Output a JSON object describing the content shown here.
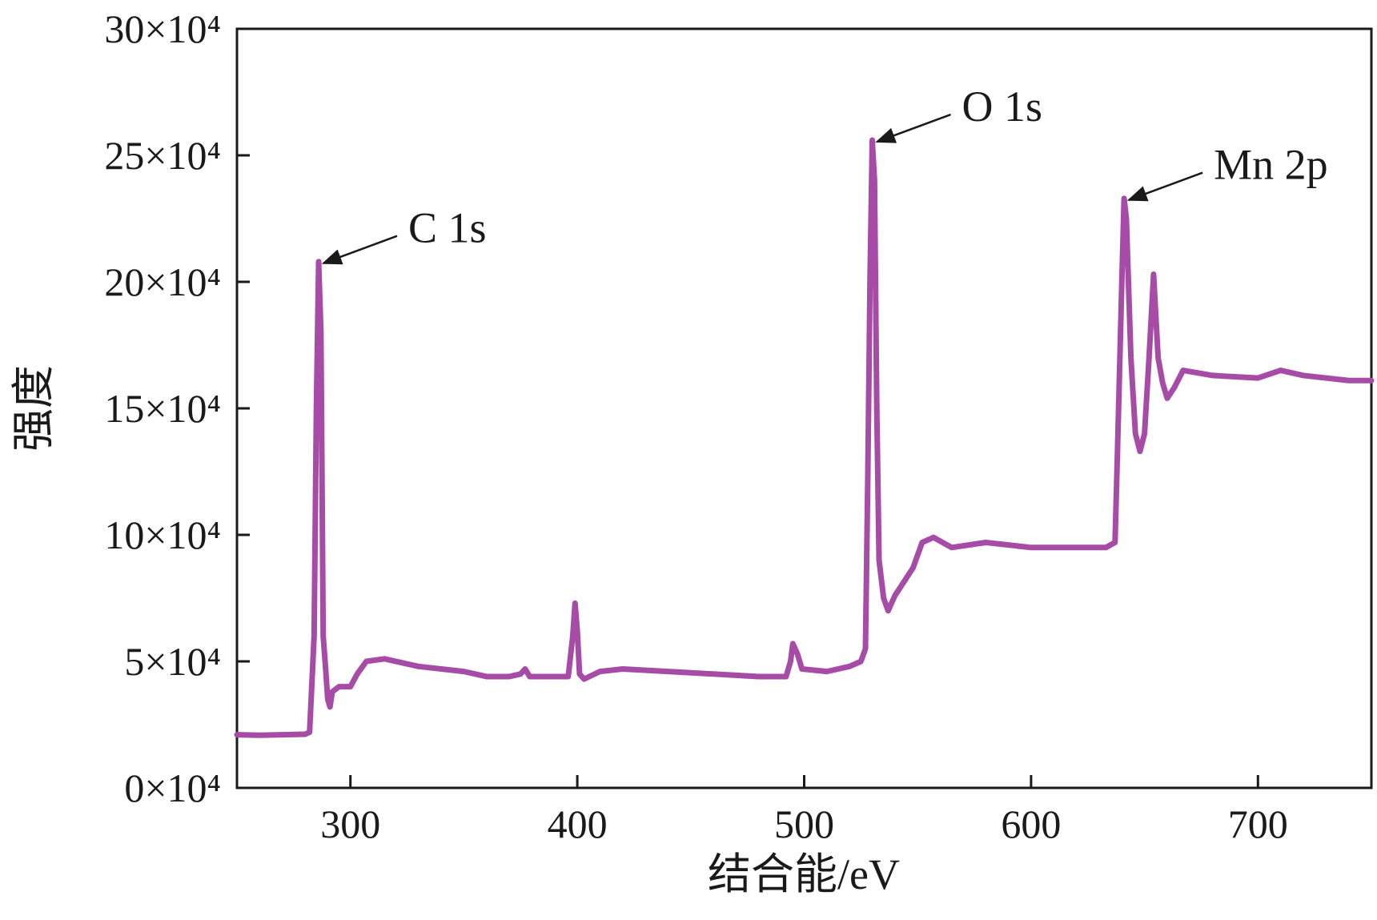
{
  "chart_data": {
    "type": "line",
    "xlabel": "结合能/eV",
    "ylabel": "强度",
    "xlim": [
      250,
      750
    ],
    "ylim": [
      0,
      300000
    ],
    "xticks": [
      300,
      400,
      500,
      600,
      700
    ],
    "yticks": [
      {
        "value": 0,
        "label": "0×10⁴"
      },
      {
        "value": 50000,
        "label": "5×10⁴"
      },
      {
        "value": 100000,
        "label": "10×10⁴"
      },
      {
        "value": 150000,
        "label": "15×10⁴"
      },
      {
        "value": 200000,
        "label": "20×10⁴"
      },
      {
        "value": 250000,
        "label": "25×10⁴"
      },
      {
        "value": 300000,
        "label": "30×10⁴"
      }
    ],
    "x": [
      250,
      260,
      270,
      280,
      282,
      284,
      285,
      286,
      287,
      288,
      289,
      290,
      291,
      292,
      295,
      300,
      303,
      307,
      315,
      330,
      350,
      360,
      370,
      375,
      377,
      379,
      390,
      396,
      398,
      399,
      400,
      401,
      403,
      410,
      420,
      440,
      460,
      480,
      492,
      494,
      495,
      497,
      499,
      510,
      520,
      525,
      527,
      528,
      529,
      530,
      531,
      532,
      533,
      535,
      537,
      540,
      548,
      552,
      557,
      565,
      580,
      600,
      620,
      633,
      637,
      638,
      640,
      641,
      642,
      644,
      646,
      648,
      650,
      652,
      654,
      656,
      658,
      660,
      663,
      667,
      680,
      700,
      710,
      720,
      740,
      750
    ],
    "series": [
      {
        "color": "#a64ca6",
        "values": [
          21000,
          20800,
          21000,
          21200,
          22000,
          60000,
          150000,
          208000,
          180000,
          60000,
          48000,
          35000,
          32000,
          38000,
          40000,
          40000,
          45000,
          50000,
          51000,
          48000,
          46000,
          44000,
          44000,
          45000,
          47000,
          44000,
          44000,
          44000,
          60000,
          73000,
          62000,
          45000,
          43000,
          46000,
          47000,
          46000,
          45000,
          44000,
          44000,
          50000,
          57000,
          53000,
          47000,
          46000,
          48000,
          50000,
          55000,
          120000,
          200000,
          256000,
          240000,
          150000,
          90000,
          75000,
          70000,
          76000,
          87000,
          97000,
          99000,
          95000,
          97000,
          95000,
          95000,
          95000,
          97000,
          130000,
          200000,
          233000,
          225000,
          170000,
          140000,
          133000,
          140000,
          170000,
          203000,
          170000,
          160000,
          154000,
          158000,
          165000,
          163000,
          162000,
          165000,
          163000,
          161000,
          161000
        ]
      }
    ],
    "annotations": [
      {
        "text": "C 1s",
        "x": 286,
        "y": 208000
      },
      {
        "text": "O 1s",
        "x": 530,
        "y": 256000
      },
      {
        "text": "Mn 2p",
        "x": 641,
        "y": 233000
      }
    ]
  }
}
